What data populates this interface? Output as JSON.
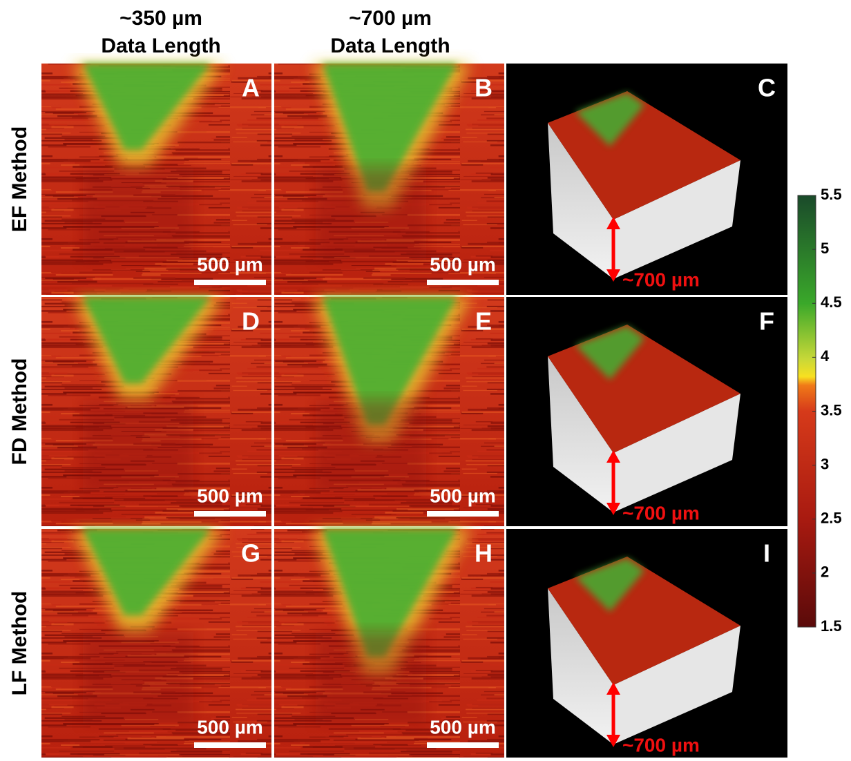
{
  "columns": [
    {
      "line1": "~350 µm",
      "line2": "Data Length"
    },
    {
      "line1": "~700 µm",
      "line2": "Data Length"
    }
  ],
  "rows": [
    "EF Method",
    "FD Method",
    "LF Method"
  ],
  "panels": [
    {
      "letter": "A",
      "scale_bar": "500 µm"
    },
    {
      "letter": "B",
      "scale_bar": "500 µm"
    },
    {
      "letter": "C",
      "depth_label": "~700 µm"
    },
    {
      "letter": "D",
      "scale_bar": "500 µm"
    },
    {
      "letter": "E",
      "scale_bar": "500 µm"
    },
    {
      "letter": "F",
      "depth_label": "~700 µm"
    },
    {
      "letter": "G",
      "scale_bar": "500 µm"
    },
    {
      "letter": "H",
      "scale_bar": "500 µm"
    },
    {
      "letter": "I",
      "depth_label": "~700 µm"
    }
  ],
  "colorbar": {
    "lim": [
      1.5,
      5.5
    ],
    "ticks": [
      5.5,
      5,
      4.5,
      4,
      3.5,
      3,
      2.5,
      2,
      1.5
    ]
  }
}
